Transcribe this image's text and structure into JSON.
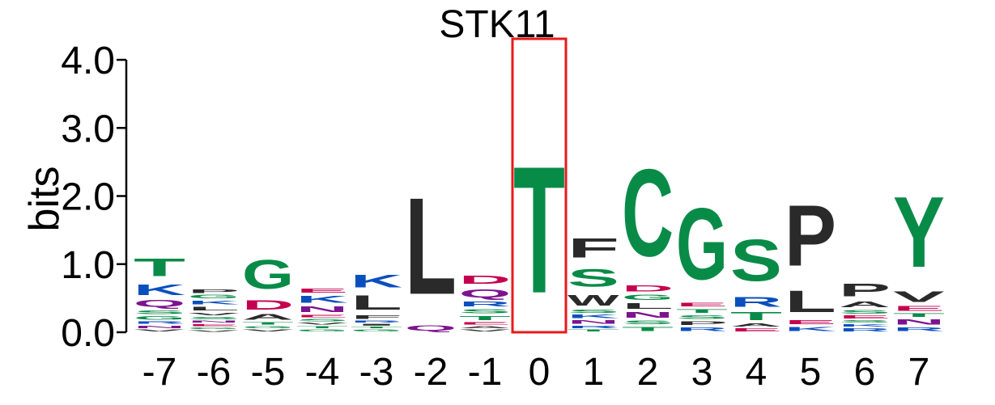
{
  "chart_data": {
    "type": "sequence-logo",
    "title": "STK11",
    "ylabel": "bits",
    "ylim": [
      0,
      4
    ],
    "yticks": [
      "0.0",
      "1.0",
      "2.0",
      "3.0",
      "4.0"
    ],
    "ytick_values": [
      0,
      1,
      2,
      3,
      4
    ],
    "highlight_position": "0",
    "highlight_color": "#e8191b",
    "colors": {
      "T": "#098b48",
      "S": "#098b48",
      "G": "#098b48",
      "C": "#098b48",
      "Y": "#098b48",
      "K": "#0b4fbf",
      "R": "#0b4fbf",
      "H": "#0b4fbf",
      "D": "#c5004e",
      "E": "#c5004e",
      "N": "#7d138f",
      "Q": "#7d138f",
      "L": "#2a2a2a",
      "P": "#2a2a2a",
      "F": "#2a2a2a",
      "W": "#2a2a2a",
      "A": "#2a2a2a",
      "V": "#2a2a2a",
      "M": "#2a2a2a",
      "I": "#2a2a2a"
    },
    "positions": [
      {
        "label": "-7",
        "letters": [
          {
            "char": "V",
            "bits": 0.05
          },
          {
            "char": "N",
            "bits": 0.06
          },
          {
            "char": "R",
            "bits": 0.06
          },
          {
            "char": "G",
            "bits": 0.08
          },
          {
            "char": "S",
            "bits": 0.09
          },
          {
            "char": "Q",
            "bits": 0.16
          },
          {
            "char": "K",
            "bits": 0.24
          },
          {
            "char": "T",
            "bits": 0.42
          }
        ]
      },
      {
        "label": "-6",
        "letters": [
          {
            "char": "V",
            "bits": 0.04
          },
          {
            "char": "G",
            "bits": 0.04
          },
          {
            "char": "E",
            "bits": 0.05
          },
          {
            "char": "N",
            "bits": 0.05
          },
          {
            "char": "S",
            "bits": 0.06
          },
          {
            "char": "V",
            "bits": 0.06
          },
          {
            "char": "L",
            "bits": 0.09
          },
          {
            "char": "K",
            "bits": 0.09
          },
          {
            "char": "G",
            "bits": 0.08
          },
          {
            "char": "P",
            "bits": 0.08
          }
        ]
      },
      {
        "label": "-5",
        "letters": [
          {
            "char": "V",
            "bits": 0.05
          },
          {
            "char": "G",
            "bits": 0.05
          },
          {
            "char": "T",
            "bits": 0.06
          },
          {
            "char": "A",
            "bits": 0.13
          },
          {
            "char": "D",
            "bits": 0.22
          },
          {
            "char": "G",
            "bits": 0.68
          }
        ]
      },
      {
        "label": "-4",
        "letters": [
          {
            "char": "G",
            "bits": 0.05
          },
          {
            "char": "T",
            "bits": 0.05
          },
          {
            "char": "V",
            "bits": 0.05
          },
          {
            "char": "S",
            "bits": 0.06
          },
          {
            "char": "E",
            "bits": 0.06
          },
          {
            "char": "N",
            "bits": 0.13
          },
          {
            "char": "K",
            "bits": 0.16
          },
          {
            "char": "E",
            "bits": 0.1
          }
        ]
      },
      {
        "label": "-3",
        "letters": [
          {
            "char": "G",
            "bits": 0.05
          },
          {
            "char": "T",
            "bits": 0.04
          },
          {
            "char": "I",
            "bits": 0.04
          },
          {
            "char": "R",
            "bits": 0.05
          },
          {
            "char": "F",
            "bits": 0.09
          },
          {
            "char": "L",
            "bits": 0.33
          },
          {
            "char": "K",
            "bits": 0.3
          }
        ]
      },
      {
        "label": "-2",
        "letters": [
          {
            "char": "Q",
            "bits": 0.12
          },
          {
            "char": "L",
            "bits": 2.27
          }
        ]
      },
      {
        "label": "-1",
        "letters": [
          {
            "char": "V",
            "bits": 0.05
          },
          {
            "char": "A",
            "bits": 0.05
          },
          {
            "char": "E",
            "bits": 0.06
          },
          {
            "char": "T",
            "bits": 0.1
          },
          {
            "char": "S",
            "bits": 0.1
          },
          {
            "char": "R",
            "bits": 0.11
          },
          {
            "char": "Q",
            "bits": 0.2
          },
          {
            "char": "D",
            "bits": 0.2
          }
        ]
      },
      {
        "label": "0",
        "letters": [
          {
            "char": "T",
            "bits": 2.98
          }
        ]
      },
      {
        "label": "1",
        "letters": [
          {
            "char": "T",
            "bits": 0.05
          },
          {
            "char": "R",
            "bits": 0.06
          },
          {
            "char": "N",
            "bits": 0.08
          },
          {
            "char": "K",
            "bits": 0.08
          },
          {
            "char": "S",
            "bits": 0.07
          },
          {
            "char": "W",
            "bits": 0.25
          },
          {
            "char": "S",
            "bits": 0.42
          },
          {
            "char": "F",
            "bits": 0.46
          }
        ]
      },
      {
        "label": "2",
        "letters": [
          {
            "char": "T",
            "bits": 0.1
          },
          {
            "char": "S",
            "bits": 0.09
          },
          {
            "char": "N",
            "bits": 0.13
          },
          {
            "char": "L",
            "bits": 0.13
          },
          {
            "char": "G",
            "bits": 0.12
          },
          {
            "char": "D",
            "bits": 0.15
          },
          {
            "char": "C",
            "bits": 2.05
          }
        ]
      },
      {
        "label": "3",
        "letters": [
          {
            "char": "R",
            "bits": 0.09
          },
          {
            "char": "P",
            "bits": 0.09
          },
          {
            "char": "S",
            "bits": 0.09
          },
          {
            "char": "T",
            "bits": 0.09
          },
          {
            "char": "E",
            "bits": 0.09
          },
          {
            "char": "G",
            "bits": 1.68
          }
        ]
      },
      {
        "label": "4",
        "letters": [
          {
            "char": "E",
            "bits": 0.07
          },
          {
            "char": "A",
            "bits": 0.07
          },
          {
            "char": "T",
            "bits": 0.19
          },
          {
            "char": "R",
            "bits": 0.23
          },
          {
            "char": "S",
            "bits": 0.98
          }
        ]
      },
      {
        "label": "5",
        "letters": [
          {
            "char": "K",
            "bits": 0.1
          },
          {
            "char": "E",
            "bits": 0.1
          },
          {
            "char": "L",
            "bits": 0.5
          },
          {
            "char": "P",
            "bits": 1.43
          }
        ]
      },
      {
        "label": "6",
        "letters": [
          {
            "char": "R",
            "bits": 0.07
          },
          {
            "char": "K",
            "bits": 0.06
          },
          {
            "char": "S",
            "bits": 0.06
          },
          {
            "char": "E",
            "bits": 0.07
          },
          {
            "char": "S",
            "bits": 0.08
          },
          {
            "char": "A",
            "bits": 0.13
          },
          {
            "char": "P",
            "bits": 0.3
          }
        ]
      },
      {
        "label": "7",
        "letters": [
          {
            "char": "R",
            "bits": 0.09
          },
          {
            "char": "N",
            "bits": 0.12
          },
          {
            "char": "T",
            "bits": 0.08
          },
          {
            "char": "E",
            "bits": 0.11
          },
          {
            "char": "V",
            "bits": 0.24
          },
          {
            "char": "Y",
            "bits": 1.65
          }
        ]
      }
    ]
  }
}
